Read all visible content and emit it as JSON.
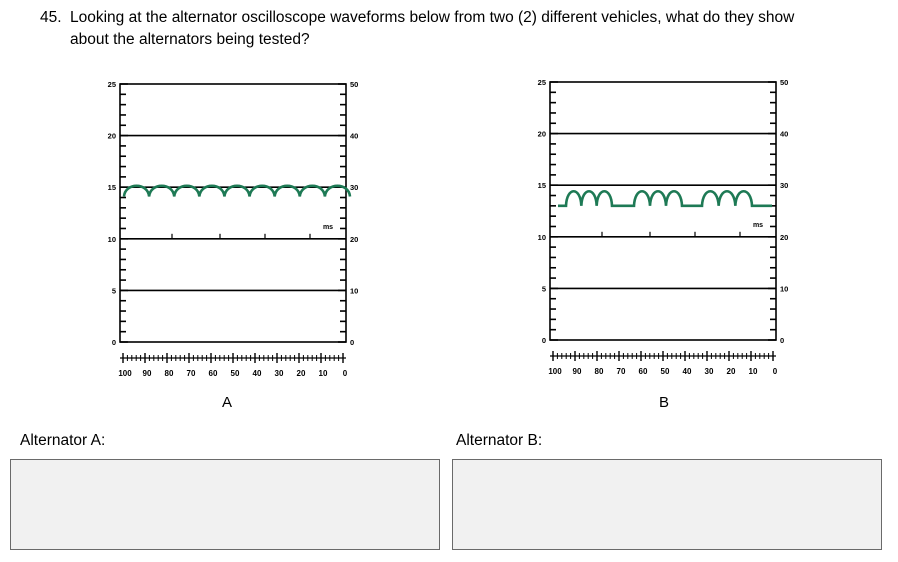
{
  "question": {
    "number": "45.",
    "line1": "Looking at the alternator oscilloscope waveforms below from two (2) different vehicles, what do they show",
    "line2": "about the alternators being tested?"
  },
  "chart_data": [
    {
      "type": "line",
      "label": "A",
      "left_axis_ticks": [
        "25",
        "20",
        "15",
        "10",
        "5",
        "0"
      ],
      "right_axis_ticks": [
        "50",
        "40",
        "30",
        "20",
        "10",
        "0"
      ],
      "x_ticks": [
        "100",
        "90",
        "80",
        "70",
        "60",
        "50",
        "40",
        "30",
        "20",
        "10",
        "0"
      ],
      "x_unit_label": "ms",
      "ylim": [
        0,
        25
      ],
      "waveform": {
        "baseline": 14.1,
        "peak": 15.0,
        "humps": 9,
        "gaps": false
      }
    },
    {
      "type": "line",
      "label": "B",
      "left_axis_ticks": [
        "25",
        "20",
        "15",
        "10",
        "5",
        "0"
      ],
      "right_axis_ticks": [
        "50",
        "40",
        "30",
        "20",
        "10",
        "0"
      ],
      "x_ticks": [
        "100",
        "90",
        "80",
        "70",
        "60",
        "50",
        "40",
        "30",
        "20",
        "10",
        "0"
      ],
      "x_unit_label": "ms",
      "ylim": [
        0,
        25
      ],
      "waveform": {
        "baseline": 13.0,
        "peak": 14.4,
        "humps": 3,
        "group_size": 3,
        "gaps": true
      }
    }
  ],
  "answers": {
    "a_label": "Alternator A:",
    "b_label": "Alternator B:"
  },
  "colors": {
    "trace": "#1e7a55",
    "frame": "#000000",
    "answer_box": "#f1f1f1"
  }
}
